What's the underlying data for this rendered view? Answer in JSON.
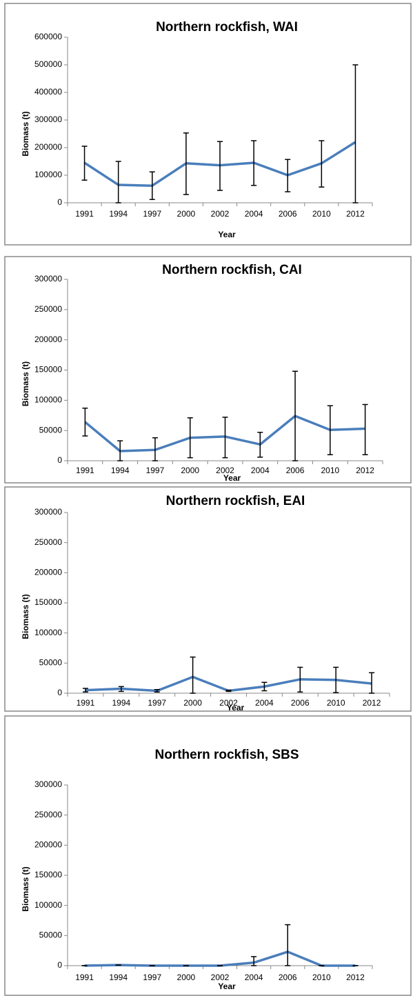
{
  "charts": [
    {
      "type": "line",
      "title": "Northern rockfish, WAI",
      "x_label": "Year",
      "y_label": "Biomass (t)",
      "categories": [
        "1991",
        "1994",
        "1997",
        "2000",
        "2002",
        "2004",
        "2006",
        "2010",
        "2012"
      ],
      "series": [
        {
          "color": "#4a7ebb",
          "values": [
            145000,
            65000,
            62000,
            143000,
            136000,
            145000,
            100000,
            143000,
            220000
          ],
          "error_low": [
            82000,
            0,
            12000,
            30000,
            45000,
            63000,
            40000,
            57000,
            0
          ],
          "error_high": [
            205000,
            150000,
            112000,
            253000,
            222000,
            225000,
            157000,
            225000,
            500000
          ]
        }
      ],
      "ylim": [
        0,
        600000
      ],
      "yticks": [
        0,
        100000,
        200000,
        300000,
        400000,
        500000,
        600000
      ]
    },
    {
      "type": "line",
      "title": "Northern rockfish, CAI",
      "x_label": "Year",
      "y_label": "Biomass (t)",
      "categories": [
        "1991",
        "1994",
        "1997",
        "2000",
        "2002",
        "2004",
        "2006",
        "2010",
        "2012"
      ],
      "series": [
        {
          "color": "#4a7ebb",
          "values": [
            64000,
            16000,
            18000,
            38000,
            40000,
            27000,
            74000,
            51000,
            53000
          ],
          "error_low": [
            41000,
            0,
            0,
            5000,
            5000,
            6000,
            0,
            10000,
            10000
          ],
          "error_high": [
            87000,
            33000,
            38000,
            71000,
            72000,
            47000,
            148000,
            91000,
            93000
          ]
        }
      ],
      "ylim": [
        0,
        300000
      ],
      "yticks": [
        0,
        50000,
        100000,
        150000,
        200000,
        250000,
        300000
      ]
    },
    {
      "type": "line",
      "title": "Northern rockfish, EAI",
      "x_label": "Year",
      "y_label": "Biomass (t)",
      "categories": [
        "1991",
        "1994",
        "1997",
        "2000",
        "2002",
        "2004",
        "2006",
        "2010",
        "2012"
      ],
      "series": [
        {
          "color": "#4a7ebb",
          "values": [
            5000,
            7500,
            4000,
            27000,
            4000,
            11000,
            23000,
            22000,
            16000
          ],
          "error_low": [
            2000,
            3000,
            2000,
            0,
            3000,
            4000,
            2000,
            1000,
            0
          ],
          "error_high": [
            8000,
            11000,
            6000,
            60000,
            5000,
            18000,
            43000,
            43000,
            34000
          ]
        }
      ],
      "ylim": [
        0,
        300000
      ],
      "yticks": [
        0,
        50000,
        100000,
        150000,
        200000,
        250000,
        300000
      ]
    },
    {
      "type": "line",
      "title": "Northern rockfish, SBS",
      "x_label": "Year",
      "y_label": "Biomass (t)",
      "categories": [
        "1991",
        "1994",
        "1997",
        "2000",
        "2002",
        "2004",
        "2006",
        "2010",
        "2012"
      ],
      "series": [
        {
          "color": "#4a7ebb",
          "values": [
            0,
            1000,
            0,
            0,
            0,
            5000,
            23000,
            0,
            0
          ],
          "error_low": [
            0,
            1000,
            0,
            0,
            0,
            0,
            0,
            0,
            0
          ],
          "error_high": [
            0,
            1000,
            0,
            0,
            0,
            15000,
            68000,
            0,
            0
          ]
        }
      ],
      "ylim": [
        0,
        300000
      ],
      "yticks": [
        0,
        50000,
        100000,
        150000,
        200000,
        250000,
        300000
      ]
    }
  ]
}
